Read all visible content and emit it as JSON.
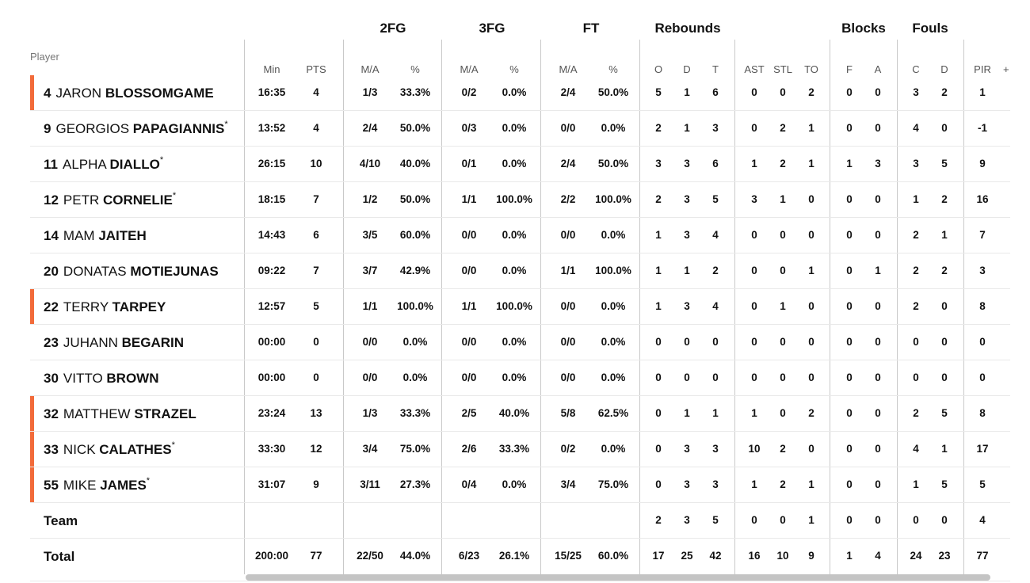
{
  "groups": {
    "twofg": "2FG",
    "threefg": "3FG",
    "ft": "FT",
    "rebounds": "Rebounds",
    "blocks": "Blocks",
    "fouls": "Fouls"
  },
  "headers": {
    "player": "Player",
    "min": "Min",
    "pts": "PTS",
    "fg2_ma": "M/A",
    "fg2_pct": "%",
    "fg3_ma": "M/A",
    "fg3_pct": "%",
    "ft_ma": "M/A",
    "ft_pct": "%",
    "reb_o": "O",
    "reb_d": "D",
    "reb_t": "T",
    "ast": "AST",
    "stl": "STL",
    "to": "TO",
    "blk_f": "F",
    "blk_a": "A",
    "foul_c": "C",
    "foul_d": "D",
    "pir": "PIR",
    "plus": "+"
  },
  "accent_color": "#f26b3a",
  "players": [
    {
      "num": "4",
      "first": "JARON",
      "last": "BLOSSOMGAME",
      "star": "",
      "starter": true,
      "min": "16:35",
      "pts": "4",
      "fg2_ma": "1/3",
      "fg2_pct": "33.3%",
      "fg3_ma": "0/2",
      "fg3_pct": "0.0%",
      "ft_ma": "2/4",
      "ft_pct": "50.0%",
      "reb_o": "5",
      "reb_d": "1",
      "reb_t": "6",
      "ast": "0",
      "stl": "0",
      "to": "2",
      "blk_f": "0",
      "blk_a": "0",
      "foul_c": "3",
      "foul_d": "2",
      "pir": "1"
    },
    {
      "num": "9",
      "first": "GEORGIOS",
      "last": "PAPAGIANNIS",
      "star": "*",
      "starter": false,
      "min": "13:52",
      "pts": "4",
      "fg2_ma": "2/4",
      "fg2_pct": "50.0%",
      "fg3_ma": "0/3",
      "fg3_pct": "0.0%",
      "ft_ma": "0/0",
      "ft_pct": "0.0%",
      "reb_o": "2",
      "reb_d": "1",
      "reb_t": "3",
      "ast": "0",
      "stl": "2",
      "to": "1",
      "blk_f": "0",
      "blk_a": "0",
      "foul_c": "4",
      "foul_d": "0",
      "pir": "-1"
    },
    {
      "num": "11",
      "first": "ALPHA",
      "last": "DIALLO",
      "star": "*",
      "starter": false,
      "min": "26:15",
      "pts": "10",
      "fg2_ma": "4/10",
      "fg2_pct": "40.0%",
      "fg3_ma": "0/1",
      "fg3_pct": "0.0%",
      "ft_ma": "2/4",
      "ft_pct": "50.0%",
      "reb_o": "3",
      "reb_d": "3",
      "reb_t": "6",
      "ast": "1",
      "stl": "2",
      "to": "1",
      "blk_f": "1",
      "blk_a": "3",
      "foul_c": "3",
      "foul_d": "5",
      "pir": "9"
    },
    {
      "num": "12",
      "first": "PETR",
      "last": "CORNELIE",
      "star": "*",
      "starter": false,
      "min": "18:15",
      "pts": "7",
      "fg2_ma": "1/2",
      "fg2_pct": "50.0%",
      "fg3_ma": "1/1",
      "fg3_pct": "100.0%",
      "ft_ma": "2/2",
      "ft_pct": "100.0%",
      "reb_o": "2",
      "reb_d": "3",
      "reb_t": "5",
      "ast": "3",
      "stl": "1",
      "to": "0",
      "blk_f": "0",
      "blk_a": "0",
      "foul_c": "1",
      "foul_d": "2",
      "pir": "16"
    },
    {
      "num": "14",
      "first": "MAM",
      "last": "JAITEH",
      "star": "",
      "starter": false,
      "min": "14:43",
      "pts": "6",
      "fg2_ma": "3/5",
      "fg2_pct": "60.0%",
      "fg3_ma": "0/0",
      "fg3_pct": "0.0%",
      "ft_ma": "0/0",
      "ft_pct": "0.0%",
      "reb_o": "1",
      "reb_d": "3",
      "reb_t": "4",
      "ast": "0",
      "stl": "0",
      "to": "0",
      "blk_f": "0",
      "blk_a": "0",
      "foul_c": "2",
      "foul_d": "1",
      "pir": "7"
    },
    {
      "num": "20",
      "first": "DONATAS",
      "last": "MOTIEJUNAS",
      "star": "",
      "starter": false,
      "min": "09:22",
      "pts": "7",
      "fg2_ma": "3/7",
      "fg2_pct": "42.9%",
      "fg3_ma": "0/0",
      "fg3_pct": "0.0%",
      "ft_ma": "1/1",
      "ft_pct": "100.0%",
      "reb_o": "1",
      "reb_d": "1",
      "reb_t": "2",
      "ast": "0",
      "stl": "0",
      "to": "1",
      "blk_f": "0",
      "blk_a": "1",
      "foul_c": "2",
      "foul_d": "2",
      "pir": "3"
    },
    {
      "num": "22",
      "first": "TERRY",
      "last": "TARPEY",
      "star": "",
      "starter": true,
      "min": "12:57",
      "pts": "5",
      "fg2_ma": "1/1",
      "fg2_pct": "100.0%",
      "fg3_ma": "1/1",
      "fg3_pct": "100.0%",
      "ft_ma": "0/0",
      "ft_pct": "0.0%",
      "reb_o": "1",
      "reb_d": "3",
      "reb_t": "4",
      "ast": "0",
      "stl": "1",
      "to": "0",
      "blk_f": "0",
      "blk_a": "0",
      "foul_c": "2",
      "foul_d": "0",
      "pir": "8"
    },
    {
      "num": "23",
      "first": "JUHANN",
      "last": "BEGARIN",
      "star": "",
      "starter": false,
      "min": "00:00",
      "pts": "0",
      "fg2_ma": "0/0",
      "fg2_pct": "0.0%",
      "fg3_ma": "0/0",
      "fg3_pct": "0.0%",
      "ft_ma": "0/0",
      "ft_pct": "0.0%",
      "reb_o": "0",
      "reb_d": "0",
      "reb_t": "0",
      "ast": "0",
      "stl": "0",
      "to": "0",
      "blk_f": "0",
      "blk_a": "0",
      "foul_c": "0",
      "foul_d": "0",
      "pir": "0"
    },
    {
      "num": "30",
      "first": "VITTO",
      "last": "BROWN",
      "star": "",
      "starter": false,
      "min": "00:00",
      "pts": "0",
      "fg2_ma": "0/0",
      "fg2_pct": "0.0%",
      "fg3_ma": "0/0",
      "fg3_pct": "0.0%",
      "ft_ma": "0/0",
      "ft_pct": "0.0%",
      "reb_o": "0",
      "reb_d": "0",
      "reb_t": "0",
      "ast": "0",
      "stl": "0",
      "to": "0",
      "blk_f": "0",
      "blk_a": "0",
      "foul_c": "0",
      "foul_d": "0",
      "pir": "0"
    },
    {
      "num": "32",
      "first": "MATTHEW",
      "last": "STRAZEL",
      "star": "",
      "starter": true,
      "min": "23:24",
      "pts": "13",
      "fg2_ma": "1/3",
      "fg2_pct": "33.3%",
      "fg3_ma": "2/5",
      "fg3_pct": "40.0%",
      "ft_ma": "5/8",
      "ft_pct": "62.5%",
      "reb_o": "0",
      "reb_d": "1",
      "reb_t": "1",
      "ast": "1",
      "stl": "0",
      "to": "2",
      "blk_f": "0",
      "blk_a": "0",
      "foul_c": "2",
      "foul_d": "5",
      "pir": "8"
    },
    {
      "num": "33",
      "first": "NICK",
      "last": "CALATHES",
      "star": "*",
      "starter": true,
      "min": "33:30",
      "pts": "12",
      "fg2_ma": "3/4",
      "fg2_pct": "75.0%",
      "fg3_ma": "2/6",
      "fg3_pct": "33.3%",
      "ft_ma": "0/2",
      "ft_pct": "0.0%",
      "reb_o": "0",
      "reb_d": "3",
      "reb_t": "3",
      "ast": "10",
      "stl": "2",
      "to": "0",
      "blk_f": "0",
      "blk_a": "0",
      "foul_c": "4",
      "foul_d": "1",
      "pir": "17"
    },
    {
      "num": "55",
      "first": "MIKE",
      "last": "JAMES",
      "star": "*",
      "starter": true,
      "min": "31:07",
      "pts": "9",
      "fg2_ma": "3/11",
      "fg2_pct": "27.3%",
      "fg3_ma": "0/4",
      "fg3_pct": "0.0%",
      "ft_ma": "3/4",
      "ft_pct": "75.0%",
      "reb_o": "0",
      "reb_d": "3",
      "reb_t": "3",
      "ast": "1",
      "stl": "2",
      "to": "1",
      "blk_f": "0",
      "blk_a": "0",
      "foul_c": "1",
      "foul_d": "5",
      "pir": "5"
    }
  ],
  "team": {
    "label": "Team",
    "min": "",
    "pts": "",
    "fg2_ma": "",
    "fg2_pct": "",
    "fg3_ma": "",
    "fg3_pct": "",
    "ft_ma": "",
    "ft_pct": "",
    "reb_o": "2",
    "reb_d": "3",
    "reb_t": "5",
    "ast": "0",
    "stl": "0",
    "to": "1",
    "blk_f": "0",
    "blk_a": "0",
    "foul_c": "0",
    "foul_d": "0",
    "pir": "4"
  },
  "total": {
    "label": "Total",
    "min": "200:00",
    "pts": "77",
    "fg2_ma": "22/50",
    "fg2_pct": "44.0%",
    "fg3_ma": "6/23",
    "fg3_pct": "26.1%",
    "ft_ma": "15/25",
    "ft_pct": "60.0%",
    "reb_o": "17",
    "reb_d": "25",
    "reb_t": "42",
    "ast": "16",
    "stl": "10",
    "to": "9",
    "blk_f": "1",
    "blk_a": "4",
    "foul_c": "24",
    "foul_d": "23",
    "pir": "77"
  }
}
